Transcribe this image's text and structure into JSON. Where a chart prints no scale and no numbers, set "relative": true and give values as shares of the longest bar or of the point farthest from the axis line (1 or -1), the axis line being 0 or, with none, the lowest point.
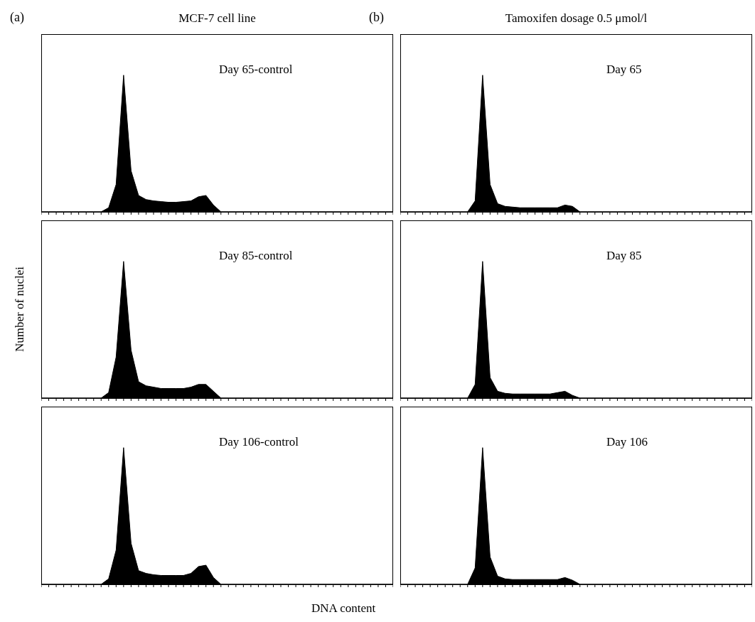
{
  "chart_data": [
    {
      "type": "area",
      "title": "MCF-7 cell line",
      "annotations": [
        "(a)"
      ],
      "subtitle": "Day 65-control",
      "relative": true,
      "tick_labels": false,
      "color": "#000000",
      "categories": [
        null,
        null,
        null,
        null,
        null,
        null,
        null,
        null,
        null,
        null,
        null,
        null,
        null,
        null,
        null,
        null,
        null,
        null,
        null,
        null,
        null,
        null,
        null,
        null,
        null,
        null,
        null,
        null,
        null,
        null,
        null,
        null,
        null,
        null,
        null,
        null,
        null,
        null,
        null,
        null,
        null,
        null,
        null,
        null,
        null,
        null,
        null,
        null
      ],
      "values": [
        0,
        0,
        0,
        0,
        0,
        0,
        0,
        0,
        0,
        0.03,
        0.2,
        1,
        0.3,
        0.12,
        0.09,
        0.08,
        0.075,
        0.07,
        0.07,
        0.075,
        0.08,
        0.11,
        0.12,
        0.05,
        0,
        0,
        0,
        0,
        0,
        0,
        0,
        0,
        0,
        0,
        0,
        0,
        0,
        0,
        0,
        0,
        0,
        0,
        0,
        0,
        0,
        0,
        0,
        0
      ]
    },
    {
      "type": "area",
      "title": "Tamoxifen dosage 0.5 μmol/l",
      "annotations": [
        "(b)"
      ],
      "subtitle": "Day 65",
      "relative": true,
      "tick_labels": false,
      "color": "#000000",
      "categories": [
        null,
        null,
        null,
        null,
        null,
        null,
        null,
        null,
        null,
        null,
        null,
        null,
        null,
        null,
        null,
        null,
        null,
        null,
        null,
        null,
        null,
        null,
        null,
        null,
        null,
        null,
        null,
        null,
        null,
        null,
        null,
        null,
        null,
        null,
        null,
        null,
        null,
        null,
        null,
        null,
        null,
        null,
        null,
        null,
        null,
        null,
        null,
        null
      ],
      "values": [
        0,
        0,
        0,
        0,
        0,
        0,
        0,
        0,
        0,
        0,
        0.08,
        1,
        0.2,
        0.06,
        0.04,
        0.035,
        0.03,
        0.03,
        0.03,
        0.03,
        0.03,
        0.03,
        0.05,
        0.04,
        0,
        0,
        0,
        0,
        0,
        0,
        0,
        0,
        0,
        0,
        0,
        0,
        0,
        0,
        0,
        0,
        0,
        0,
        0,
        0,
        0,
        0,
        0,
        0
      ]
    },
    {
      "type": "area",
      "ylabel": "Number of nuclei",
      "subtitle": "Day 85-control",
      "relative": true,
      "tick_labels": false,
      "color": "#000000",
      "categories": [
        null,
        null,
        null,
        null,
        null,
        null,
        null,
        null,
        null,
        null,
        null,
        null,
        null,
        null,
        null,
        null,
        null,
        null,
        null,
        null,
        null,
        null,
        null,
        null,
        null,
        null,
        null,
        null,
        null,
        null,
        null,
        null,
        null,
        null,
        null,
        null,
        null,
        null,
        null,
        null,
        null,
        null,
        null,
        null,
        null,
        null,
        null,
        null
      ],
      "values": [
        0,
        0,
        0,
        0,
        0,
        0,
        0,
        0,
        0,
        0.04,
        0.3,
        1,
        0.35,
        0.12,
        0.09,
        0.08,
        0.07,
        0.07,
        0.07,
        0.07,
        0.08,
        0.1,
        0.1,
        0.05,
        0,
        0,
        0,
        0,
        0,
        0,
        0,
        0,
        0,
        0,
        0,
        0,
        0,
        0,
        0,
        0,
        0,
        0,
        0,
        0,
        0,
        0,
        0,
        0
      ]
    },
    {
      "type": "area",
      "subtitle": "Day 85",
      "relative": true,
      "tick_labels": false,
      "color": "#000000",
      "categories": [
        null,
        null,
        null,
        null,
        null,
        null,
        null,
        null,
        null,
        null,
        null,
        null,
        null,
        null,
        null,
        null,
        null,
        null,
        null,
        null,
        null,
        null,
        null,
        null,
        null,
        null,
        null,
        null,
        null,
        null,
        null,
        null,
        null,
        null,
        null,
        null,
        null,
        null,
        null,
        null,
        null,
        null,
        null,
        null,
        null,
        null,
        null,
        null
      ],
      "values": [
        0,
        0,
        0,
        0,
        0,
        0,
        0,
        0,
        0,
        0,
        0.1,
        1,
        0.15,
        0.05,
        0.035,
        0.03,
        0.03,
        0.03,
        0.03,
        0.03,
        0.03,
        0.04,
        0.05,
        0.02,
        0,
        0,
        0,
        0,
        0,
        0,
        0,
        0,
        0,
        0,
        0,
        0,
        0,
        0,
        0,
        0,
        0,
        0,
        0,
        0,
        0,
        0,
        0,
        0
      ]
    },
    {
      "type": "area",
      "xlabel": "DNA content",
      "subtitle": "Day 106-control",
      "relative": true,
      "tick_labels": false,
      "color": "#000000",
      "categories": [
        null,
        null,
        null,
        null,
        null,
        null,
        null,
        null,
        null,
        null,
        null,
        null,
        null,
        null,
        null,
        null,
        null,
        null,
        null,
        null,
        null,
        null,
        null,
        null,
        null,
        null,
        null,
        null,
        null,
        null,
        null,
        null,
        null,
        null,
        null,
        null,
        null,
        null,
        null,
        null,
        null,
        null,
        null,
        null,
        null,
        null,
        null,
        null
      ],
      "values": [
        0,
        0,
        0,
        0,
        0,
        0,
        0,
        0,
        0,
        0.04,
        0.25,
        1,
        0.3,
        0.1,
        0.08,
        0.07,
        0.065,
        0.065,
        0.065,
        0.065,
        0.08,
        0.13,
        0.14,
        0.05,
        0,
        0,
        0,
        0,
        0,
        0,
        0,
        0,
        0,
        0,
        0,
        0,
        0,
        0,
        0,
        0,
        0,
        0,
        0,
        0,
        0,
        0,
        0,
        0
      ]
    },
    {
      "type": "area",
      "subtitle": "Day 106",
      "relative": true,
      "tick_labels": false,
      "color": "#000000",
      "categories": [
        null,
        null,
        null,
        null,
        null,
        null,
        null,
        null,
        null,
        null,
        null,
        null,
        null,
        null,
        null,
        null,
        null,
        null,
        null,
        null,
        null,
        null,
        null,
        null,
        null,
        null,
        null,
        null,
        null,
        null,
        null,
        null,
        null,
        null,
        null,
        null,
        null,
        null,
        null,
        null,
        null,
        null,
        null,
        null,
        null,
        null,
        null,
        null
      ],
      "values": [
        0,
        0,
        0,
        0,
        0,
        0,
        0,
        0,
        0,
        0,
        0.12,
        1,
        0.2,
        0.06,
        0.04,
        0.035,
        0.035,
        0.035,
        0.035,
        0.035,
        0.035,
        0.035,
        0.05,
        0.03,
        0,
        0,
        0,
        0,
        0,
        0,
        0,
        0,
        0,
        0,
        0,
        0,
        0,
        0,
        0,
        0,
        0,
        0,
        0,
        0,
        0,
        0,
        0,
        0
      ]
    }
  ]
}
